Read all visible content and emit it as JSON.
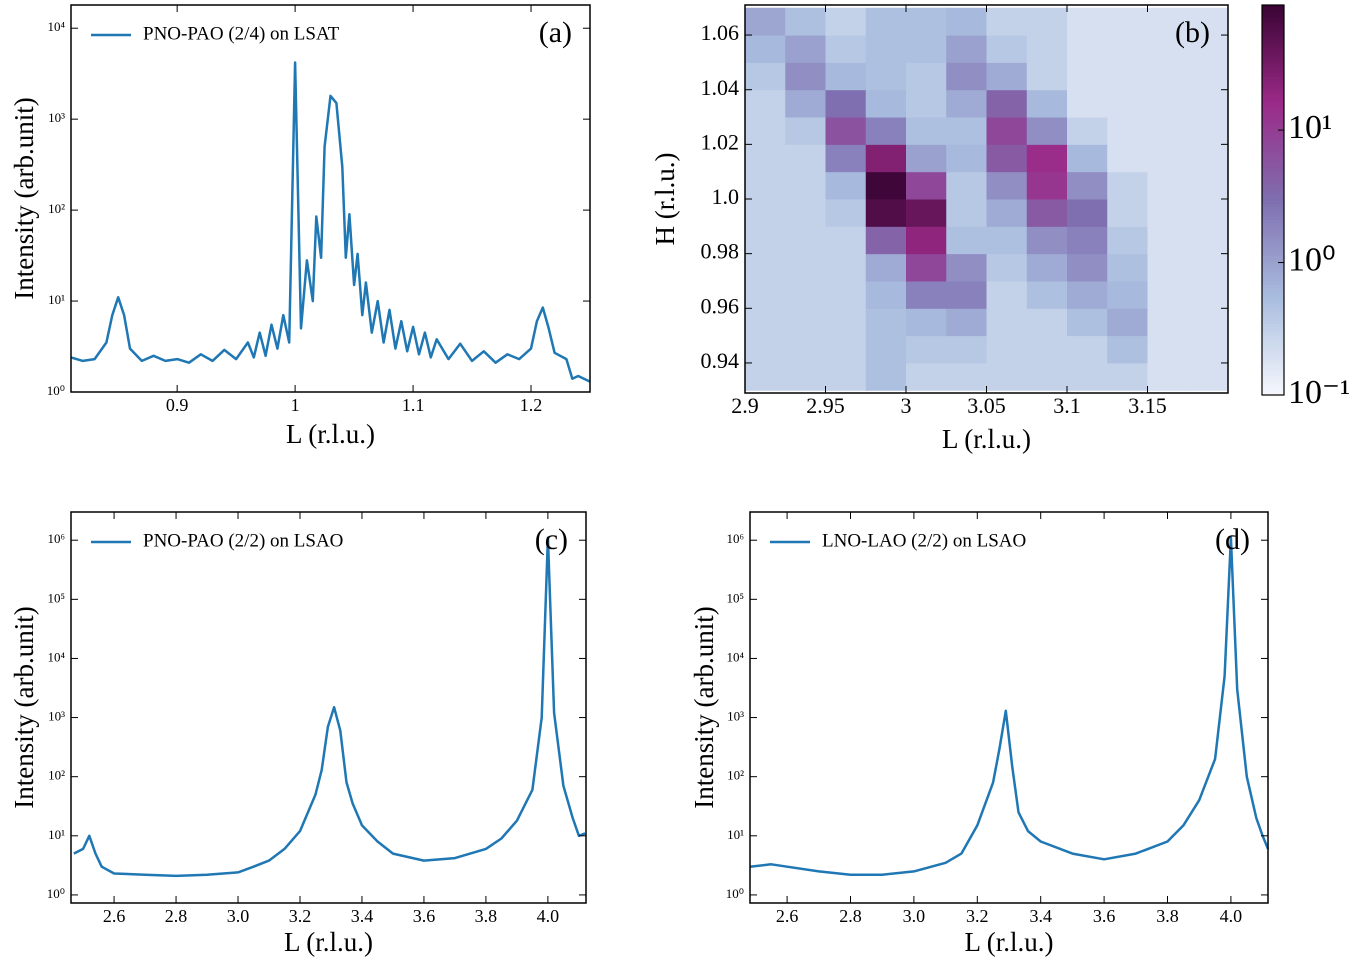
{
  "chart_data": [
    {
      "type": "line",
      "annotation": "(a)",
      "xlabel": "L (r.l.u.)",
      "ylabel": "Intensity (arb.unit)",
      "log_y": true,
      "legend": "upper left",
      "x": [
        0.81,
        0.82,
        0.83,
        0.84,
        0.845,
        0.85,
        0.855,
        0.86,
        0.87,
        0.88,
        0.89,
        0.9,
        0.91,
        0.92,
        0.93,
        0.94,
        0.95,
        0.96,
        0.965,
        0.97,
        0.975,
        0.98,
        0.985,
        0.99,
        0.995,
        1.0,
        1.005,
        1.01,
        1.015,
        1.018,
        1.022,
        1.025,
        1.03,
        1.035,
        1.04,
        1.043,
        1.046,
        1.05,
        1.053,
        1.057,
        1.06,
        1.065,
        1.07,
        1.075,
        1.08,
        1.085,
        1.09,
        1.095,
        1.1,
        1.105,
        1.11,
        1.115,
        1.12,
        1.13,
        1.14,
        1.15,
        1.16,
        1.17,
        1.18,
        1.19,
        1.2,
        1.205,
        1.21,
        1.215,
        1.22,
        1.23,
        1.235,
        1.24,
        1.25
      ],
      "series": [
        {
          "name": "PNO-PAO (2/4) on LSAT",
          "color": "#1f77b4",
          "values": [
            2.4,
            2.2,
            2.3,
            3.5,
            7,
            11,
            7,
            3,
            2.2,
            2.5,
            2.2,
            2.3,
            2.1,
            2.6,
            2.2,
            2.9,
            2.3,
            3.5,
            2.4,
            4.5,
            2.5,
            5.5,
            3,
            7,
            3.5,
            4200,
            5,
            28,
            10,
            85,
            30,
            500,
            1800,
            1500,
            300,
            30,
            90,
            15,
            33,
            7,
            16,
            4.5,
            10,
            3.5,
            8,
            3,
            6,
            2.8,
            5.2,
            2.6,
            4.5,
            2.4,
            3.8,
            2.3,
            3.4,
            2.2,
            2.8,
            2.1,
            2.6,
            2.3,
            3,
            6,
            8.5,
            5,
            2.7,
            2.3,
            1.4,
            1.5,
            1.3
          ]
        }
      ],
      "xlim": [
        0.81,
        1.25
      ],
      "xticks": [
        0.9,
        1,
        1.1,
        1.2
      ],
      "ylim": [
        1,
        18000
      ],
      "yticks": [
        {
          "value": 1,
          "label": "10⁰"
        },
        {
          "value": 10,
          "label": "10¹"
        },
        {
          "value": 100,
          "label": "10²"
        },
        {
          "value": 1000,
          "label": "10³"
        },
        {
          "value": 10000,
          "label": "10⁴"
        }
      ]
    },
    {
      "type": "heatmap",
      "annotation": "(b)",
      "xlabel": "L (r.l.u.)",
      "ylabel": "H (r.l.u.)",
      "log_color": true,
      "cmap": [
        "#f6f8fc",
        "#a9bddf",
        "#7f6fb0",
        "#9b2a88",
        "#3a0434"
      ],
      "x": [
        2.9125,
        2.9375,
        2.9625,
        2.9875,
        3.0125,
        3.0375,
        3.0625,
        3.0875,
        3.1125,
        3.1375,
        3.1625,
        3.1875
      ],
      "y": [
        0.935,
        0.945,
        0.955,
        0.965,
        0.975,
        0.985,
        0.995,
        1.005,
        1.015,
        1.025,
        1.035,
        1.045,
        1.055,
        1.065
      ],
      "z": [
        [
          0.3,
          0.3,
          0.3,
          0.5,
          0.3,
          0.3,
          0.3,
          0.3,
          0.3,
          0.3,
          0.2,
          0.2
        ],
        [
          0.3,
          0.3,
          0.3,
          0.5,
          0.4,
          0.4,
          0.3,
          0.3,
          0.3,
          0.5,
          0.2,
          0.2
        ],
        [
          0.3,
          0.3,
          0.3,
          0.5,
          0.6,
          0.8,
          0.3,
          0.3,
          0.5,
          0.8,
          0.2,
          0.2
        ],
        [
          0.3,
          0.3,
          0.3,
          0.6,
          2,
          2,
          0.3,
          0.5,
          0.8,
          0.6,
          0.2,
          0.2
        ],
        [
          0.3,
          0.3,
          0.3,
          0.8,
          8,
          1.5,
          0.4,
          0.8,
          1.5,
          0.5,
          0.2,
          0.2
        ],
        [
          0.3,
          0.3,
          0.3,
          4,
          20,
          0.5,
          0.5,
          1.5,
          2,
          0.4,
          0.2,
          0.2
        ],
        [
          0.3,
          0.3,
          0.4,
          60,
          40,
          0.4,
          0.8,
          5,
          3,
          0.3,
          0.2,
          0.2
        ],
        [
          0.3,
          0.3,
          0.6,
          80,
          8,
          0.4,
          1.5,
          12,
          1.5,
          0.3,
          0.2,
          0.2
        ],
        [
          0.3,
          0.3,
          2,
          25,
          1,
          0.6,
          5,
          15,
          0.6,
          0.2,
          0.2,
          0.2
        ],
        [
          0.3,
          0.4,
          6,
          2,
          0.5,
          0.5,
          8,
          1.5,
          0.3,
          0.2,
          0.2,
          0.2
        ],
        [
          0.3,
          0.8,
          3,
          0.6,
          0.4,
          0.8,
          4,
          0.6,
          0.2,
          0.2,
          0.2,
          0.2
        ],
        [
          0.4,
          1.5,
          0.6,
          0.5,
          0.4,
          1.5,
          0.8,
          0.3,
          0.2,
          0.2,
          0.2,
          0.2
        ],
        [
          0.6,
          1.0,
          0.4,
          0.5,
          0.5,
          1.0,
          0.4,
          0.3,
          0.2,
          0.2,
          0.2,
          0.2
        ],
        [
          0.9,
          0.5,
          0.3,
          0.5,
          0.5,
          0.6,
          0.3,
          0.3,
          0.2,
          0.2,
          0.2,
          0.2
        ]
      ],
      "xlim": [
        2.9,
        3.2
      ],
      "xticks": [
        2.9,
        2.95,
        3,
        3.05,
        3.1,
        3.15
      ],
      "ylim": [
        0.929,
        1.071
      ],
      "yticks": [
        0.94,
        0.96,
        0.98,
        {
          "value": 1,
          "label": "1.0"
        },
        1.02,
        1.04,
        1.06
      ],
      "clim": [
        0.1,
        88
      ],
      "cticks": [
        {
          "value": 0.1,
          "label": "10⁻¹"
        },
        {
          "value": 1,
          "label": "10⁰"
        },
        {
          "value": 10,
          "label": "10¹"
        }
      ]
    },
    {
      "type": "line",
      "annotation": "(c)",
      "xlabel": "L (r.l.u.)",
      "ylabel": "Intensity (arb.unit)",
      "log_y": true,
      "legend": "upper left",
      "x": [
        2.47,
        2.5,
        2.52,
        2.54,
        2.56,
        2.6,
        2.7,
        2.8,
        2.9,
        3.0,
        3.05,
        3.1,
        3.15,
        3.2,
        3.25,
        3.27,
        3.29,
        3.31,
        3.33,
        3.35,
        3.37,
        3.4,
        3.45,
        3.5,
        3.6,
        3.7,
        3.8,
        3.85,
        3.9,
        3.95,
        3.98,
        4.0,
        4.02,
        4.05,
        4.08,
        4.1,
        4.12
      ],
      "series": [
        {
          "name": "PNO-PAO (2/2) on LSAO",
          "color": "#1f77b4",
          "values": [
            5,
            6,
            10,
            5,
            3,
            2.3,
            2.2,
            2.1,
            2.2,
            2.4,
            3,
            3.8,
            6,
            12,
            50,
            130,
            700,
            1500,
            600,
            80,
            35,
            15,
            8,
            5,
            3.8,
            4.2,
            6,
            9,
            18,
            60,
            1000,
            1100000,
            1200,
            70,
            20,
            10,
            11
          ]
        }
      ],
      "xlim": [
        2.461,
        4.123
      ],
      "xticks": [
        2.6,
        2.8,
        {
          "value": 3,
          "label": "3.0"
        },
        3.2,
        3.4,
        3.6,
        3.8,
        {
          "value": 4,
          "label": "4.0"
        }
      ],
      "ylim": [
        0.73,
        3000000
      ],
      "yticks": [
        {
          "value": 1,
          "label": "10⁰"
        },
        {
          "value": 10,
          "label": "10¹"
        },
        {
          "value": 100,
          "label": "10²"
        },
        {
          "value": 1000,
          "label": "10³"
        },
        {
          "value": 10000,
          "label": "10⁴"
        },
        {
          "value": 100000,
          "label": "10⁵"
        },
        {
          "value": 1000000,
          "label": "10⁶"
        }
      ]
    },
    {
      "type": "line",
      "annotation": "(d)",
      "xlabel": "L (r.l.u.)",
      "ylabel": "Intensity (arb.unit)",
      "log_y": true,
      "legend": "upper left",
      "x": [
        2.483,
        2.55,
        2.6,
        2.7,
        2.8,
        2.9,
        3.0,
        3.1,
        3.15,
        3.2,
        3.25,
        3.27,
        3.29,
        3.31,
        3.33,
        3.36,
        3.4,
        3.5,
        3.6,
        3.7,
        3.8,
        3.85,
        3.9,
        3.95,
        3.98,
        4.0,
        4.02,
        4.05,
        4.08,
        4.1,
        4.117
      ],
      "series": [
        {
          "name": "LNO-LAO (2/2) on LSAO",
          "color": "#1f77b4",
          "values": [
            3,
            3.3,
            3,
            2.5,
            2.2,
            2.2,
            2.5,
            3.5,
            5,
            15,
            80,
            300,
            1300,
            150,
            25,
            12,
            8,
            5,
            4,
            5,
            8,
            15,
            40,
            200,
            5000,
            1100000,
            3000,
            100,
            20,
            10,
            6
          ]
        }
      ],
      "xlim": [
        2.483,
        4.117
      ],
      "xticks": [
        2.6,
        2.8,
        {
          "value": 3,
          "label": "3.0"
        },
        3.2,
        3.4,
        3.6,
        3.8,
        {
          "value": 4,
          "label": "4.0"
        }
      ],
      "ylim": [
        0.73,
        3000000
      ],
      "yticks": [
        {
          "value": 1,
          "label": "10⁰"
        },
        {
          "value": 10,
          "label": "10¹"
        },
        {
          "value": 100,
          "label": "10²"
        },
        {
          "value": 1000,
          "label": "10³"
        },
        {
          "value": 10000,
          "label": "10⁴"
        },
        {
          "value": 100000,
          "label": "10⁵"
        },
        {
          "value": 1000000,
          "label": "10⁶"
        }
      ]
    }
  ]
}
